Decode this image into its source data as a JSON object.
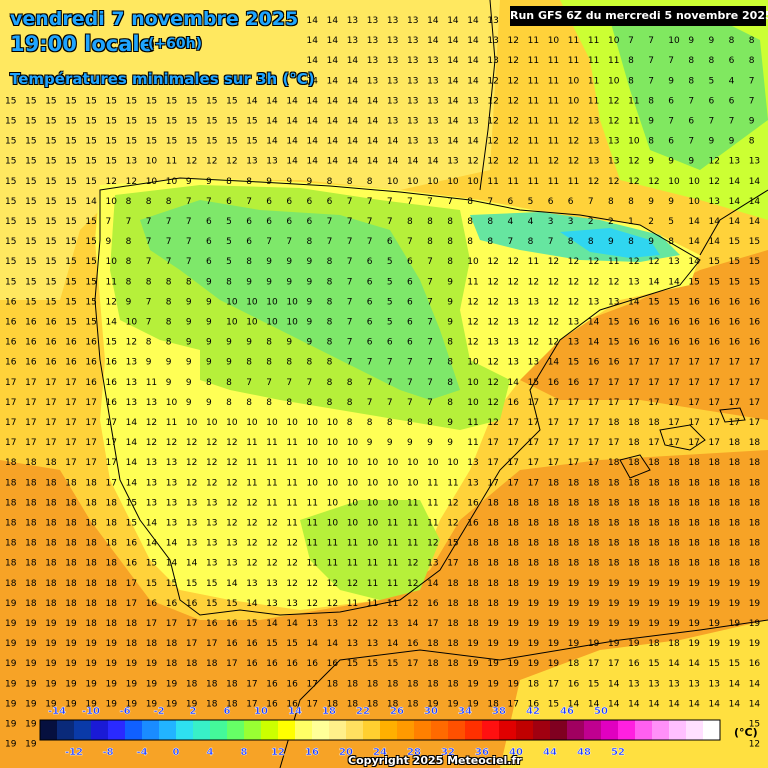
{
  "header": {
    "date": "vendredi 7 novembre 2025",
    "time": "19:00 locale",
    "offset": "(+60h)",
    "subtitle": "Températures minimales sur 3h (°C)"
  },
  "run_info": "Run GFS 6Z du mercredi 5 novembre 2025",
  "copyright": "Copyright 2025 Meteociel.fr",
  "legend": {
    "unit": "(°C)",
    "labels_top": [
      "-14",
      "-10",
      "-6",
      "-2",
      "2",
      "6",
      "10",
      "14",
      "18",
      "22",
      "26",
      "30",
      "34",
      "38",
      "42",
      "46",
      "50"
    ],
    "labels_bottom": [
      "-12",
      "-8",
      "-4",
      "0",
      "4",
      "8",
      "12",
      "16",
      "20",
      "24",
      "28",
      "32",
      "36",
      "40",
      "44",
      "48",
      "52"
    ],
    "colors": [
      "#06103f",
      "#0a2a7a",
      "#0a3aa8",
      "#1a1ad6",
      "#2a2aff",
      "#1060ff",
      "#1a8cff",
      "#22b4ff",
      "#2ee0f0",
      "#38f0c8",
      "#44f89a",
      "#66ff66",
      "#99ff33",
      "#ccff00",
      "#ffff00",
      "#ffff66",
      "#ffff99",
      "#fff08a",
      "#ffe060",
      "#ffd030",
      "#ffb000",
      "#ff9a00",
      "#ff8000",
      "#ff6a00",
      "#ff5000",
      "#ff3000",
      "#ff1010",
      "#e00000",
      "#c00000",
      "#a00010",
      "#800020",
      "#a00060",
      "#c00090",
      "#e000c0",
      "#ff20e0",
      "#ff60f0",
      "#ff90f8",
      "#ffc0ff",
      "#ffe0ff",
      "#ffffff"
    ]
  },
  "grid_values": {
    "rows": [
      "15 15 15 15 15 15 15 15 15 15 15 15 14 14 14 14 14 13 13 13 13 14 14 14 13 11 11 11 10 11 10 6 6 10 10 8 8 7",
      "14 14 14 14 15 15 15 15 15 15 15 15 14 14 14 14 14 13 13 13 13 14 14 14 13 12 11 10 11 11 10 7 7 10 9 9 8 8",
      "15 15 15 15 15 15 15 15 15 15 15 15 14 14 14 14 14 14 13 13 13 13 14 14 13 12 11 11 11 11 11 8 7 7 8 8 6 8",
      "15 15 15 15 15 15 15 15 15 15 15 15 14 14 14 14 14 14 13 13 13 13 14 14 12 12 11 11 10 11 10 8 7 9 8 5 4 7",
      "15 15 15 15 15 15 15 15 15 15 15 15 14 14 14 14 14 14 14 13 13 13 14 13 12 12 11 11 10 11 12 11 8 6 7 6 6 7",
      "15 15 15 15 15 15 15 15 15 15 15 15 15 14 14 14 14 14 14 13 13 13 14 13 12 12 11 11 12 13 12 11 9 7 6 7 7 9",
      "15 15 15 15 15 15 15 15 15 15 15 15 15 14 14 14 14 14 14 14 13 13 14 14 12 12 11 11 12 13 13 10 8 6 7 9 9 8",
      "15 15 15 15 15 15 13 10 11 12 12 12 13 13 14 14 14 14 14 14 14 14 13 12 12 12 11 12 12 13 13 12 9 9 9 12 13 13",
      "15 15 15 15 15 12 12 10 10 9 9 8 8 9 9 9 8 8 8 10 10 10 10 10 11 11 11 11 11 12 12 12 12 10 10 12 14 14",
      "15 15 15 15 14 10 8 8 8 7 7 6 7 6 6 6 6 7 7 7 7 7 7 8 7 6 5 6 6 7 8 8 9 9 10 13 14 14",
      "15 15 15 15 15 7 7 7 7 7 6 5 6 6 6 6 7 7 7 7 8 8 8 8 8 4 4 3 3 2 2 1 2 5 14 14 14 14",
      "15 15 15 15 15 9 8 7 7 7 6 5 6 7 7 8 7 7 7 6 7 8 8 8 8 7 8 7 8 8 9 8 9 8 14 14 15 15",
      "15 15 15 15 15 10 8 7 7 7 6 5 8 9 9 9 8 7 6 5 6 7 8 10 12 12 11 12 12 12 11 12 12 13 14 15 15 15",
      "15 15 15 15 15 11 8 8 8 8 9 8 9 9 9 9 8 7 6 5 6 7 9 11 12 12 12 12 12 12 12 13 14 14 15 15 15 15",
      "16 15 15 15 15 12 9 7 8 9 9 10 10 10 10 9 8 7 6 5 6 7 9 12 12 13 13 12 12 13 13 14 15 15 16 16 16 16",
      "16 16 16 15 15 14 10 7 8 9 9 10 10 10 10 9 8 7 6 5 6 7 9 12 12 13 12 12 13 14 15 16 16 16 16 16 16 16",
      "16 16 16 16 16 15 12 8 8 9 9 9 9 8 9 9 8 7 6 6 6 7 8 12 13 13 12 12 13 14 15 16 16 16 16 16 16 16",
      "16 16 16 16 16 16 13 9 9 9 9 9 8 8 8 8 8 7 7 7 7 7 8 10 12 13 13 14 15 16 16 17 17 17 17 17 17 17",
      "17 17 17 17 16 16 13 11 9 9 8 8 7 7 7 7 8 8 7 7 7 7 8 10 12 14 15 16 16 17 17 17 17 17 17 17 17 17",
      "17 17 17 17 17 16 13 13 10 9 9 8 8 8 8 8 8 8 7 7 7 7 8 10 12 16 17 17 17 17 17 17 17 17 17 17 17 17",
      "17 17 17 17 17 17 14 12 11 10 10 10 10 10 10 10 10 8 8 8 8 8 9 11 12 17 17 17 17 17 18 18 18 17 17 17 17 17",
      "17 17 17 17 17 17 14 12 12 12 12 12 11 11 11 10 10 10 9 9 9 9 9 11 17 17 17 17 17 17 17 18 17 17 17 17 18 18",
      "18 18 18 17 17 17 14 13 13 12 12 12 11 11 11 10 10 10 10 10 10 10 10 13 17 17 17 17 17 17 18 18 18 18 18 18 18 18",
      "18 18 18 18 18 17 14 13 13 12 12 12 11 11 11 10 10 10 10 10 10 11 11 13 17 17 17 18 18 18 18 18 18 18 18 18 18 18",
      "18 18 18 18 18 18 15 13 13 13 13 12 12 11 11 11 10 10 10 10 11 11 12 16 18 18 18 18 18 18 18 18 18 18 18 18 18 18",
      "18 18 18 18 18 18 15 14 13 13 13 12 12 12 11 11 10 10 10 11 11 11 12 16 18 18 18 18 18 18 18 18 18 18 18 18 18 18",
      "18 18 18 18 18 18 16 14 14 13 13 13 12 12 12 11 11 11 10 11 11 12 15 18 18 18 18 18 18 18 18 18 18 18 18 18 18 18",
      "18 18 18 18 18 18 16 15 14 14 13 13 12 12 12 11 11 11 11 11 12 13 17 18 18 18 18 18 18 18 18 18 18 18 18 18 18 18",
      "18 18 18 18 18 18 17 15 15 15 15 14 13 13 12 12 12 12 11 11 12 14 18 18 18 18 19 19 19 19 19 19 19 19 19 19 19 19",
      "19 18 18 18 18 18 17 16 16 16 15 15 14 13 13 12 12 11 11 11 12 16 18 18 18 19 19 19 19 19 19 19 19 19 19 19 19 19",
      "19 19 19 19 18 18 18 17 17 17 16 16 15 14 14 13 13 12 12 13 14 17 18 18 19 19 19 19 19 19 19 19 19 19 19 19 19 19",
      "19 19 19 19 19 19 18 18 18 17 17 16 16 15 15 14 14 13 13 14 16 18 18 19 19 19 19 19 19 19 19 19 18 18 19 19 19 19",
      "19 19 19 19 19 19 19 19 18 18 18 17 16 16 16 16 16 15 15 15 17 18 18 19 19 19 19 19 18 17 17 16 15 14 14 15 15 16",
      "19 19 19 19 19 19 19 19 19 18 18 18 17 16 16 17 18 18 18 18 18 18 18 19 19 19 18 17 16 15 14 13 13 13 13 13 14 14",
      "19 19 19 19 19 19 19 19 19 19 18 18 17 16 16 17 18 18 18 18 18 19 19 19 18 17 16 15 14 14 14 14 14 14 14 14 14 14",
      "19 19 19 19 19 19 19 19 19 19 19 18 16 15 15 16 17 18 18 18 18 18 17 16 15 14 14 14 14 14 14 14 14 14 15 15 15 15",
      "19 19 19 19 19 19 19 19 19 19 19 18 16 16 16 16 17 17 18 18 17 16 15 14 14 14 14 14 14 14 14 15 15 15 15 15 12 12",
      "19 19 19 19 19 19 19 19 19 19 19 18 17 17 17 17 17 17 17 16 15 15 14 14 14 14 14 14 14 14 14 15 15 15 15 15 14 14"
    ]
  }
}
